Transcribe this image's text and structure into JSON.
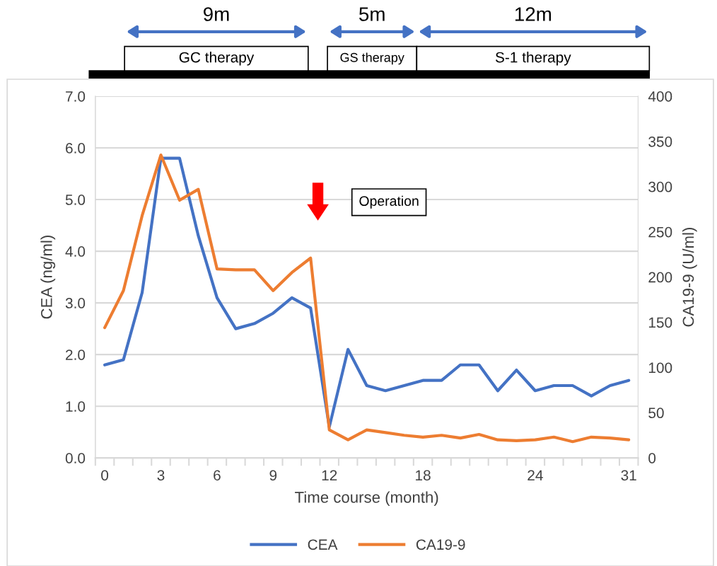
{
  "chart_data": {
    "type": "line",
    "xlabel": "Time course (month)",
    "ylabel": "CEA (ng/ml)",
    "y2label": "CA19-9 (U/ml)",
    "categories": [
      "0",
      null,
      null,
      "3",
      null,
      null,
      "6",
      null,
      null,
      "9",
      null,
      null,
      "12",
      null,
      null,
      null,
      null,
      "18",
      null,
      null,
      null,
      null,
      null,
      "24",
      null,
      null,
      null,
      null,
      "31"
    ],
    "series": [
      {
        "name": "CEA",
        "color": "#4472c4",
        "values": [
          1.8,
          1.9,
          3.2,
          5.8,
          5.8,
          4.3,
          3.1,
          2.5,
          2.6,
          2.8,
          3.1,
          2.9,
          0.6,
          2.1,
          1.4,
          1.3,
          1.4,
          1.5,
          1.5,
          1.8,
          1.8,
          1.3,
          1.7,
          1.3,
          1.4,
          1.4,
          1.2,
          1.4,
          1.5
        ]
      },
      {
        "name": "CA19-9",
        "color": "#ed7d31",
        "axis": "y2",
        "values": [
          144,
          185,
          268,
          335,
          285,
          297,
          209,
          208,
          208,
          185,
          205,
          221,
          31,
          20,
          31,
          28,
          25,
          23,
          25,
          22,
          26,
          20,
          19,
          20,
          23,
          18,
          23,
          22,
          20
        ]
      }
    ],
    "ylim": [
      0,
      7
    ],
    "yticks": [
      {
        "value": 0,
        "label": "0.0"
      },
      {
        "value": 1,
        "label": "1.0"
      },
      {
        "value": 2,
        "label": "2.0"
      },
      {
        "value": 3,
        "label": "3.0"
      },
      {
        "value": 4,
        "label": "4.0"
      },
      {
        "value": 5,
        "label": "5.0"
      },
      {
        "value": 6,
        "label": "6.0"
      },
      {
        "value": 7,
        "label": "7.0"
      }
    ],
    "y2lim": [
      0,
      400
    ],
    "y2ticks": [
      0,
      50,
      100,
      150,
      200,
      250,
      300,
      350,
      400
    ],
    "grid": "y",
    "legend": "bottom",
    "marker": "none",
    "line_style": "solid",
    "annotations": [
      "9m",
      "5m",
      "12m",
      "GC therapy",
      "GS therapy",
      "S-1 therapy",
      "Operation"
    ]
  }
}
